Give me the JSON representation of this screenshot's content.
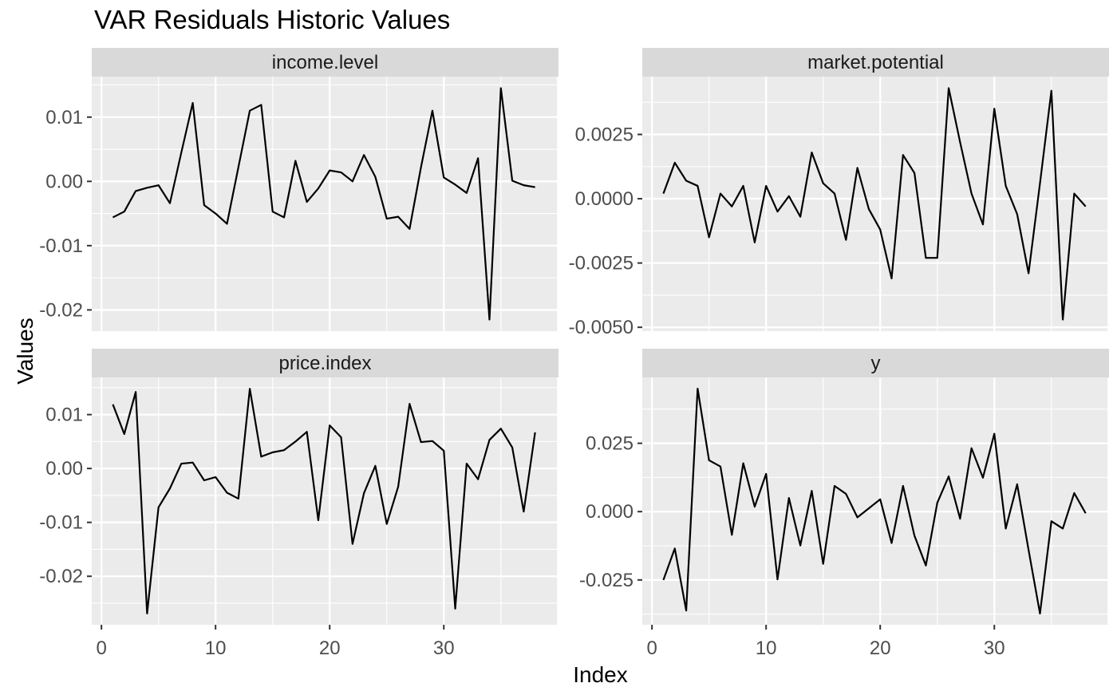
{
  "colors": {
    "background": "#FFFFFF",
    "panel_bg": "#EBEBEB",
    "strip_bg": "#D9D9D9",
    "grid": "#FFFFFF",
    "line": "#000000",
    "axis_text": "#4D4D4D",
    "strip_text": "#1A1A1A",
    "tick_mark": "#333333",
    "title_text": "#000000"
  },
  "chart_data": {
    "type": "line",
    "title": "VAR Residuals Historic Values",
    "xlabel": "Index",
    "ylabel": "Values",
    "legend": "none",
    "grid": "on",
    "x_first_index": 1,
    "xlim": [
      -0.85,
      40.05
    ],
    "x_major_ticks": {
      "values": [
        0,
        10,
        20,
        30
      ],
      "labels": [
        "0",
        "10",
        "20",
        "30"
      ]
    },
    "x_minor_ticks": [
      5,
      15,
      25,
      35
    ],
    "x_major_gridlines": [
      0,
      10,
      20,
      30,
      40
    ],
    "facets": [
      {
        "label": "income.level",
        "ylim": [
          -0.0233,
          0.0163
        ],
        "y_major_ticks": {
          "values": [
            0.01,
            0,
            -0.01,
            -0.02
          ],
          "labels": [
            "0.01",
            "0.00",
            "-0.01",
            "-0.02"
          ]
        },
        "y_minor_ticks": [
          0.015,
          0.005,
          -0.005,
          -0.015
        ],
        "values": [
          -0.0056,
          -0.0047,
          -0.0015,
          -0.001,
          -0.0006,
          -0.0034,
          0.0045,
          0.0122,
          -0.0037,
          -0.005,
          -0.0066,
          0.0022,
          0.011,
          0.0119,
          -0.0047,
          -0.0056,
          0.0032,
          -0.0032,
          -0.0011,
          0.0017,
          0.0014,
          0.0,
          0.0041,
          0.0007,
          -0.0058,
          -0.0055,
          -0.0074,
          0.0022,
          0.011,
          0.0006,
          -0.0005,
          -0.0018,
          0.0036,
          -0.0215,
          0.0145,
          0.0001,
          -0.0006,
          -0.0009
        ]
      },
      {
        "label": "market.potential",
        "ylim": [
          -0.00515,
          0.00475
        ],
        "y_major_ticks": {
          "values": [
            0.0025,
            0,
            -0.0025,
            -0.005
          ],
          "labels": [
            "0.0025",
            "0.0000",
            "-0.0025",
            "-0.0050"
          ]
        },
        "y_minor_ticks": [
          0.00375,
          0.00125,
          -0.00125,
          -0.00375
        ],
        "values": [
          0.0002,
          0.0014,
          0.0007,
          0.0005,
          -0.0015,
          0.0002,
          -0.0003,
          0.0005,
          -0.0017,
          0.0005,
          -0.0005,
          0.0001,
          -0.0007,
          0.0018,
          0.0006,
          0.0002,
          -0.0016,
          0.0012,
          -0.0004,
          -0.0012,
          -0.0031,
          0.0017,
          0.001,
          -0.0023,
          -0.0023,
          0.0043,
          0.0022,
          0.0002,
          -0.001,
          0.0035,
          0.0005,
          -0.0006,
          -0.0029,
          0.0006,
          0.0042,
          -0.0047,
          0.0002,
          -0.0003
        ]
      },
      {
        "label": "price.index",
        "ylim": [
          -0.029,
          0.0169
        ],
        "y_major_ticks": {
          "values": [
            0.01,
            0,
            -0.01,
            -0.02
          ],
          "labels": [
            "0.01",
            "0.00",
            "-0.01",
            "-0.02"
          ]
        },
        "y_minor_ticks": [
          0.015,
          0.005,
          -0.005,
          -0.015,
          -0.025
        ],
        "values": [
          0.0119,
          0.0064,
          0.0142,
          -0.0269,
          -0.0072,
          -0.0037,
          0.0009,
          0.0011,
          -0.0022,
          -0.0016,
          -0.0045,
          -0.0056,
          0.0148,
          0.0022,
          0.003,
          0.0034,
          0.005,
          0.0068,
          -0.0096,
          0.008,
          0.0058,
          -0.014,
          -0.0046,
          0.0005,
          -0.0103,
          -0.0034,
          0.012,
          0.0049,
          0.0051,
          0.0033,
          -0.026,
          0.0009,
          -0.002,
          0.0053,
          0.0074,
          0.0039,
          -0.008,
          0.0067
        ]
      },
      {
        "label": "y",
        "ylim": [
          -0.0414,
          0.0491
        ],
        "y_major_ticks": {
          "values": [
            0.025,
            0,
            -0.025
          ],
          "labels": [
            "0.025",
            "0.000",
            "-0.025"
          ]
        },
        "y_minor_ticks": [
          0.0375,
          0.0125,
          -0.0125,
          -0.0375
        ],
        "values": [
          -0.025,
          -0.0135,
          -0.0362,
          0.045,
          0.0188,
          0.0165,
          -0.0085,
          0.0177,
          0.0018,
          0.0138,
          -0.0248,
          0.005,
          -0.0124,
          0.0076,
          -0.0191,
          0.0094,
          0.0065,
          -0.0021,
          0.0012,
          0.0045,
          -0.0115,
          0.0094,
          -0.0088,
          -0.0197,
          0.0032,
          0.0129,
          -0.0026,
          0.0232,
          0.0124,
          0.0285,
          -0.0062,
          0.01,
          -0.014,
          -0.0373,
          -0.0035,
          -0.0062,
          0.0068,
          -0.0006
        ]
      }
    ]
  }
}
